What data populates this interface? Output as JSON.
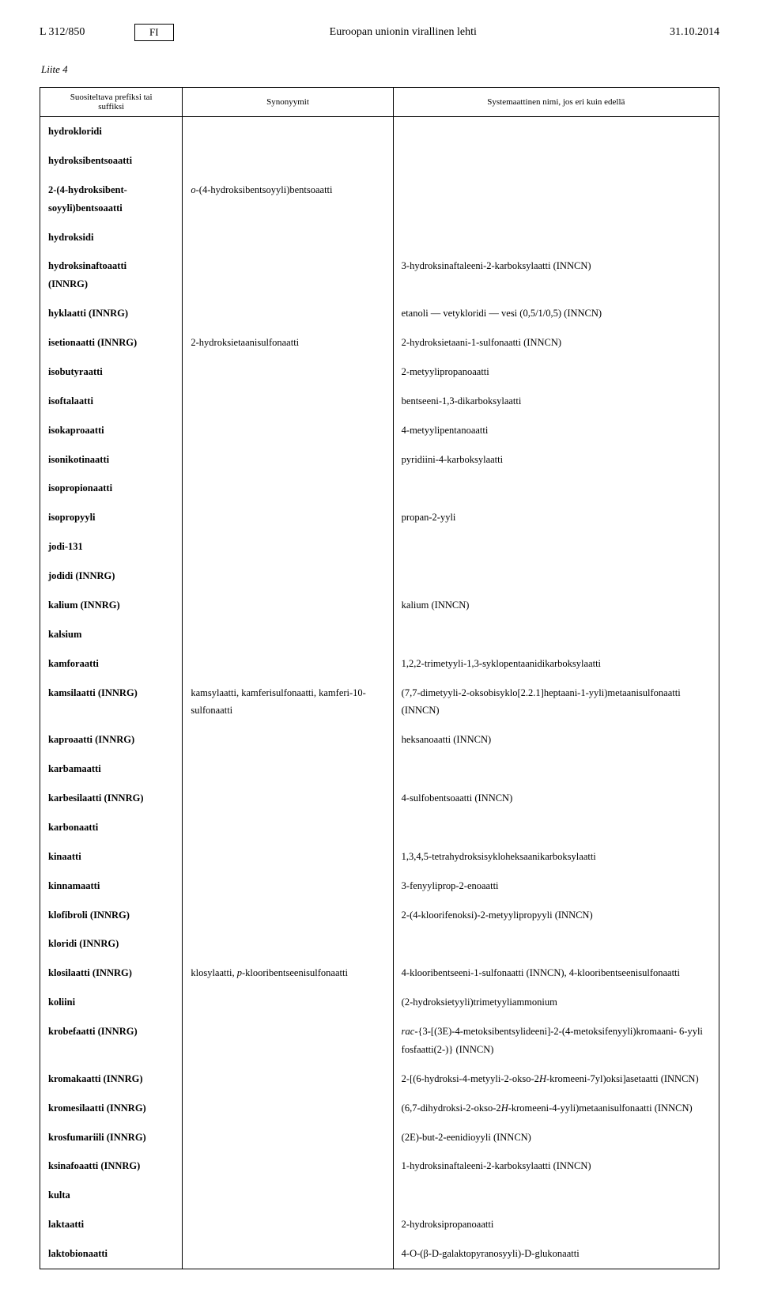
{
  "header": {
    "left": "L 312/850",
    "badge": "FI",
    "center": "Euroopan unionin virallinen lehti",
    "right": "31.10.2014"
  },
  "liite": "Liite 4",
  "columns": {
    "c1a": "Suositeltava prefiksi tai",
    "c1b": "suffiksi",
    "c2": "Synonyymit",
    "c3": "Systemaattinen nimi, jos eri kuin edellä"
  },
  "r": {
    "hydrokloridi": "hydrokloridi",
    "hydroksibentsoaatti": "hydroksibentsoaatti",
    "hb1": "2-(4-hydroksibent-",
    "hb2": "soyyli)bentsoaatti",
    "hb_syn_pre": "o",
    "hb_syn_rest": "-(4-hydroksibentsoyyli)bentsoaatti",
    "hydroksidi": "hydroksidi",
    "hydroksinaftoaatti1": "hydroksinaftoaatti",
    "hydroksinaftoaatti2": "(INNRG)",
    "hydroksinaftoaatti_c3": "3-hydroksinaftaleeni-2-karboksylaatti (INNCN)",
    "hyklaatti": "hyklaatti (INNRG)",
    "hyklaatti_c3": "etanoli — vetykloridi — vesi (0,5/1/0,5) (INNCN)",
    "isetionaatti": "isetionaatti (INNRG)",
    "isetionaatti_syn": "2-hydroksietaanisulfonaatti",
    "isetionaatti_c3": "2-hydroksietaani-1-sulfonaatti (INNCN)",
    "isobutyraatti": "isobutyraatti",
    "isobutyraatti_c3": "2-metyylipropanoaatti",
    "isoftalaatti": "isoftalaatti",
    "isoftalaatti_c3": "bentseeni-1,3-dikarboksylaatti",
    "isokaproaatti": "isokaproaatti",
    "isokaproaatti_c3": "4-metyylipentanoaatti",
    "isonikotinaatti": "isonikotinaatti",
    "isonikotinaatti_c3": "pyridiini-4-karboksylaatti",
    "isopropionaatti": "isopropionaatti",
    "isopropyyli": "isopropyyli",
    "isopropyyli_c3": "propan-2-yyli",
    "jodi131": "jodi-131",
    "jodidi": "jodidi (INNRG)",
    "kalium": "kalium (INNRG)",
    "kalium_c3": "kalium (INNCN)",
    "kalsium": "kalsium",
    "kamforaatti": "kamforaatti",
    "kamforaatti_c3": "1,2,2-trimetyyli-1,3-syklopentaanidikarboksylaatti",
    "kamsilaatti": "kamsilaatti (INNRG)",
    "kamsilaatti_syn1": "kamsylaatti, kamferisulfonaatti, kamferi-10-",
    "kamsilaatti_syn2": "sulfonaatti",
    "kamsilaatti_c3a": "(7,7-dimetyyli-2-oksobisyklo[2.2.1]heptaani-1-yyli)metaanisulfonaatti",
    "kamsilaatti_c3b": "(INNCN)",
    "kaproaatti": "kaproaatti (INNRG)",
    "kaproaatti_c3": "heksanoaatti (INNCN)",
    "karbamaatti": "karbamaatti",
    "karbesilaatti": "karbesilaatti (INNRG)",
    "karbesilaatti_c3": "4-sulfobentsoaatti (INNCN)",
    "karbonaatti": "karbonaatti",
    "kinaatti": "kinaatti",
    "kinaatti_c3": "1,3,4,5-tetrahydroksisykloheksaanikarboksylaatti",
    "kinnamaatti": "kinnamaatti",
    "kinnamaatti_c3": "3-fenyyliprop-2-enoaatti",
    "klofibroli": "klofibroli (INNRG)",
    "klofibroli_c3": "2-(4-kloorifenoksi)-2-metyylipropyyli (INNCN)",
    "kloridi": "kloridi (INNRG)",
    "klosilaatti": "klosilaatti (INNRG)",
    "klosilaatti_syn_a": "klosylaatti, ",
    "klosilaatti_syn_pi": "p",
    "klosilaatti_syn_b": "-klooribentseenisulfonaatti",
    "klosilaatti_c3": "4-klooribentseeni-1-sulfonaatti (INNCN), 4-klooribentseenisulfonaatti",
    "koliini": "koliini",
    "koliini_c3": "(2-hydroksietyyli)trimetyyliammonium",
    "krobefaatti": "krobefaatti (INNRG)",
    "krobefaatti_c3_pre": "rac",
    "krobefaatti_c3_a": "-{3-[(3E)-4-metoksibentsylideeni]-2-(4-metoksifenyyli)kromaani- 6-yyli",
    "krobefaatti_c3_b": "fosfaatti(2-)} (INNCN)",
    "kromakaatti": "kromakaatti (INNRG)",
    "kromakaatti_c3a": "2-[(6-hydroksi-4-metyyli-2-okso-2",
    "kromakaatti_c3H": "H",
    "kromakaatti_c3b": "-kromeeni-7yl)oksi]asetaatti (INNCN)",
    "kromesilaatti": "kromesilaatti (INNRG)",
    "kromesilaatti_c3a": "(6,7-dihydroksi-2-okso-2",
    "kromesilaatti_c3H": "H",
    "kromesilaatti_c3b": "-kromeeni-4-yyli)metaanisulfonaatti (INNCN)",
    "krosfumariili": "krosfumariili (INNRG)",
    "krosfumariili_c3": "(2E)-but-2-eenidioyyli (INNCN)",
    "ksinafoaatti": "ksinafoaatti (INNRG)",
    "ksinafoaatti_c3": "1-hydroksinaftaleeni-2-karboksylaatti (INNCN)",
    "kulta": "kulta",
    "laktaatti": "laktaatti",
    "laktaatti_c3": "2-hydroksipropanoaatti",
    "laktobionaatti": "laktobionaatti",
    "laktobionaatti_c3": "4-O-(β-D-galaktopyranosyyli)-D-glukonaatti"
  }
}
